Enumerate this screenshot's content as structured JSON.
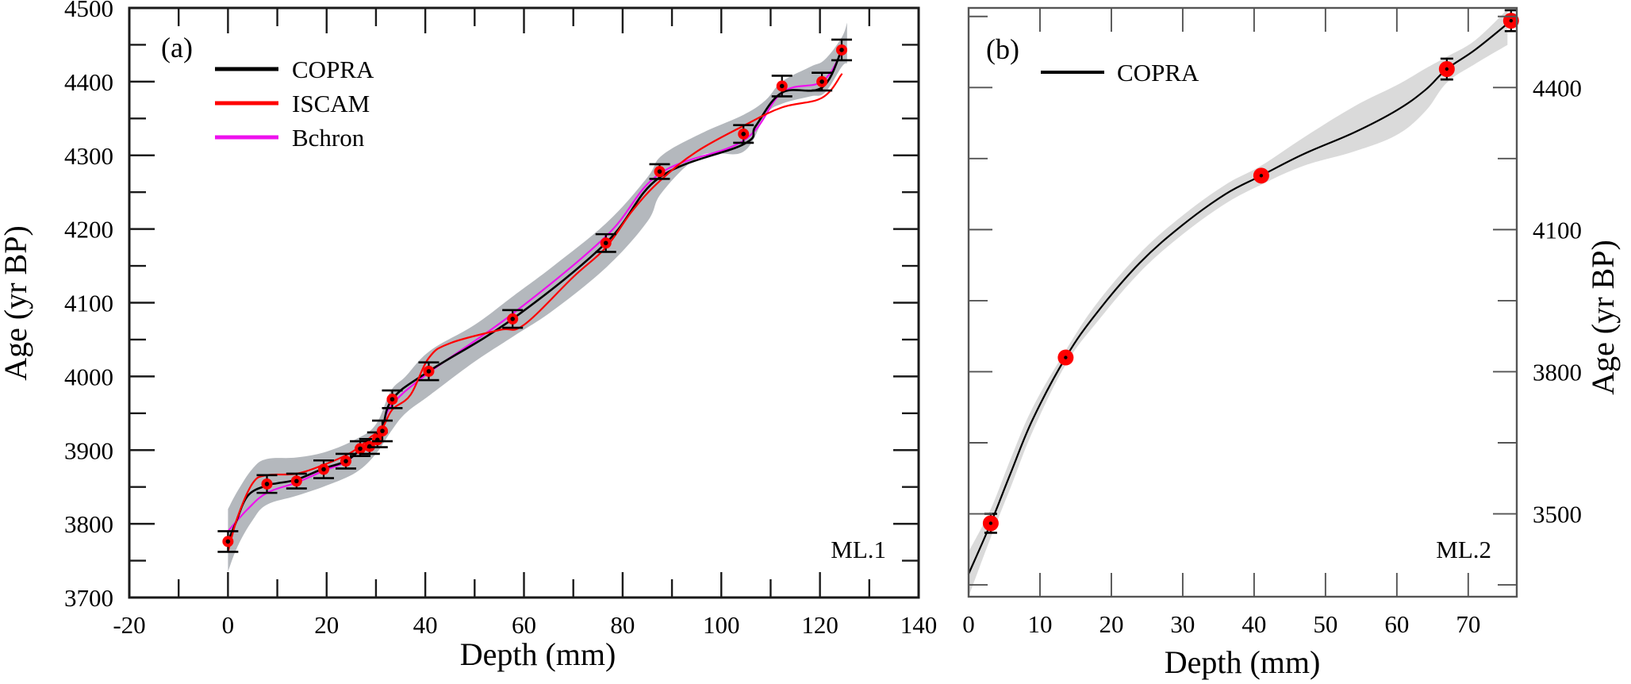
{
  "chart_data": [
    {
      "id": "a",
      "type": "line",
      "panel_label": "(a)",
      "core_label": "ML.1",
      "xlabel": "Depth (mm)",
      "ylabel": "Age (yr BP)",
      "xlim": [
        -20,
        140
      ],
      "ylim": [
        3700,
        4500
      ],
      "xticks": [
        -20,
        0,
        20,
        40,
        60,
        80,
        100,
        120,
        140
      ],
      "xtick_labels": [
        "-20",
        "0",
        "20",
        "40",
        "60",
        "80",
        "100",
        "120",
        "140"
      ],
      "xminor_step": 10,
      "yticks": [
        3700,
        3800,
        3900,
        4000,
        4100,
        4200,
        4300,
        4400,
        4500
      ],
      "ytick_labels": [
        "3700",
        "3800",
        "3900",
        "4000",
        "4100",
        "4200",
        "4300",
        "4400",
        "4500"
      ],
      "yminor_step": 50,
      "ylabel_side": "left",
      "legend": {
        "position": "top-left",
        "entries": [
          {
            "label": "COPRA",
            "color": "#000000"
          },
          {
            "label": "ISCAM",
            "color": "#ff0000"
          },
          {
            "label": "Bchron",
            "color": "#ee11ee"
          }
        ]
      },
      "dated_points": {
        "marker_color": "#ff0000",
        "depth": [
          0,
          7.9,
          13.9,
          19.4,
          23.9,
          26.8,
          28.7,
          30.3,
          31.3,
          33.3,
          40.7,
          57.7,
          76.6,
          87.5,
          104.5,
          112.3,
          120.4,
          124.4
        ],
        "age": [
          3776,
          3854,
          3858,
          3874,
          3885,
          3902,
          3905,
          3914,
          3926,
          3969,
          4007,
          4078,
          4181,
          4278,
          4329,
          4394,
          4400,
          4443
        ],
        "error": [
          14,
          12,
          10,
          12,
          10,
          10,
          10,
          10,
          14,
          12,
          12,
          12,
          12,
          10,
          12,
          14,
          12,
          14
        ]
      },
      "series": [
        {
          "name": "COPRA",
          "color": "#000000",
          "depth": [
            0,
            1.5,
            4,
            7.9,
            10,
            13.9,
            19.4,
            23.9,
            26.8,
            28.7,
            30.3,
            31.3,
            33.3,
            40.7,
            57.7,
            76.6,
            87.5,
            104.5,
            107,
            112.3,
            120.4,
            124.4
          ],
          "age": [
            3776,
            3800,
            3838,
            3852,
            3855,
            3860,
            3875,
            3885,
            3900,
            3905,
            3914,
            3926,
            3969,
            4007,
            4078,
            4181,
            4270,
            4315,
            4340,
            4385,
            4392,
            4443
          ]
        },
        {
          "name": "ISCAM",
          "color": "#ff0000",
          "depth": [
            0,
            2,
            5,
            7.9,
            13.9,
            19.4,
            23.9,
            26.8,
            29,
            31.3,
            33.3,
            37,
            40.7,
            45,
            55,
            60,
            70,
            76.6,
            82,
            87.5,
            95,
            104.5,
            112.3,
            120.4,
            124.4
          ],
          "age": [
            3762,
            3810,
            3855,
            3866,
            3868,
            3880,
            3893,
            3905,
            3918,
            3930,
            3955,
            3975,
            4025,
            4045,
            4063,
            4070,
            4135,
            4175,
            4225,
            4265,
            4305,
            4340,
            4365,
            4378,
            4410
          ]
        },
        {
          "name": "Bchron",
          "color": "#ee11ee",
          "depth": [
            0,
            4,
            7.9,
            13.9,
            19.4,
            23.9,
            26.8,
            28.7,
            30.3,
            31.3,
            33.3,
            40.7,
            57.7,
            76.6,
            87.5,
            104.5,
            112.3,
            120.4,
            124.4
          ],
          "age": [
            3790,
            3820,
            3842,
            3856,
            3872,
            3884,
            3900,
            3906,
            3916,
            3930,
            3962,
            4005,
            4085,
            4190,
            4275,
            4320,
            4385,
            4400,
            4440
          ]
        }
      ],
      "uncertainty_band": {
        "color": "#b4b8bd",
        "depth": [
          0,
          2,
          5,
          7.9,
          13.9,
          20,
          26,
          30,
          33,
          36,
          41,
          50,
          58,
          66,
          77,
          85,
          88,
          96,
          104.5,
          109,
          112.3,
          118,
          121,
          124.4,
          125.5
        ],
        "upper": [
          3820,
          3845,
          3875,
          3888,
          3890,
          3898,
          3915,
          3935,
          3980,
          4000,
          4035,
          4070,
          4110,
          4150,
          4210,
          4270,
          4300,
          4330,
          4355,
          4375,
          4400,
          4420,
          4430,
          4460,
          4480
        ],
        "lower": [
          3735,
          3770,
          3805,
          3826,
          3838,
          3852,
          3870,
          3895,
          3925,
          3950,
          3975,
          4020,
          4055,
          4090,
          4150,
          4210,
          4250,
          4300,
          4305,
          4355,
          4370,
          4380,
          4385,
          4420,
          4425
        ]
      }
    },
    {
      "id": "b",
      "type": "line",
      "panel_label": "(b)",
      "core_label": "ML.2",
      "xlabel": "Depth (mm)",
      "ylabel": "Age (yr BP)",
      "xlim": [
        0,
        76.8
      ],
      "ylim": [
        3325,
        4568
      ],
      "xticks": [
        0,
        10,
        20,
        30,
        40,
        50,
        60,
        70
      ],
      "xtick_labels": [
        "0",
        "10",
        "20",
        "30",
        "40",
        "50",
        "60",
        "70"
      ],
      "yticks": [
        3500,
        3800,
        4100,
        4400
      ],
      "ytick_labels": [
        "3500",
        "3800",
        "4100",
        "4400"
      ],
      "yminor_step": 150,
      "ylabel_side": "right",
      "legend": {
        "position": "top-left",
        "entries": [
          {
            "label": "COPRA",
            "color": "#000000"
          }
        ]
      },
      "dated_points": {
        "marker_color": "#ff0000",
        "depth": [
          3.1,
          13.6,
          41.0,
          67.0,
          76.0
        ],
        "age": [
          3480,
          3830,
          4214,
          4439,
          4541
        ],
        "error": [
          20,
          8,
          8,
          22,
          22
        ]
      },
      "series": [
        {
          "name": "COPRA",
          "color": "#000000",
          "depth": [
            0,
            3.1,
            6,
            9,
            13.6,
            18,
            24,
            30,
            36,
            41.0,
            47,
            54,
            60,
            64,
            67.0,
            71,
            76.0
          ],
          "age": [
            3373,
            3480,
            3590,
            3700,
            3830,
            3925,
            4030,
            4110,
            4175,
            4214,
            4260,
            4305,
            4352,
            4395,
            4439,
            4480,
            4541
          ]
        }
      ],
      "uncertainty_band": {
        "color": "#dadada",
        "depth": [
          0,
          3.1,
          6,
          9,
          13.6,
          18,
          24,
          30,
          36,
          41,
          47,
          54,
          60,
          64,
          67,
          71,
          75.5
        ],
        "upper": [
          3420,
          3510,
          3620,
          3725,
          3845,
          3945,
          4050,
          4130,
          4195,
          4235,
          4295,
          4360,
          4405,
          4440,
          4465,
          4500,
          4565
        ],
        "lower": [
          3325,
          3450,
          3560,
          3675,
          3815,
          3905,
          4010,
          4090,
          4155,
          4195,
          4235,
          4265,
          4300,
          4350,
          4410,
          4450,
          4490
        ]
      }
    }
  ]
}
